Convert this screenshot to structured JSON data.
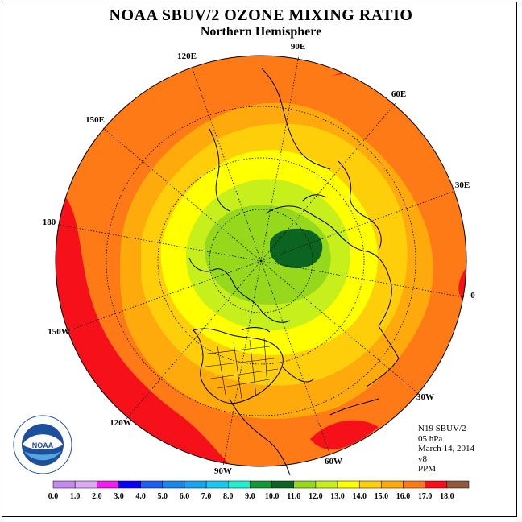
{
  "title": "NOAA SBUV/2 OZONE MIXING RATIO",
  "subtitle": "Northern Hemisphere",
  "longitude_labels": [
    "90E",
    "60E",
    "30E",
    "0",
    "30W",
    "60W",
    "90W",
    "120W",
    "150W",
    "180",
    "150E",
    "120E"
  ],
  "info": {
    "satellite": "N19 SBUV/2",
    "level": "05 hPa",
    "date": "March 14, 2014",
    "version": "v8",
    "units": "PPM"
  },
  "logo": {
    "text": "NOAA",
    "ring_text": "NATIONAL OCEANIC AND ATMOSPHERIC ADMINISTRATION · U.S. DEPARTMENT OF COMMERCE"
  },
  "colorbar": {
    "ticks": [
      "0.0",
      "1.0",
      "2.0",
      "3.0",
      "4.0",
      "5.0",
      "6.0",
      "7.0",
      "8.0",
      "9.0",
      "10.0",
      "11.0",
      "12.0",
      "13.0",
      "14.0",
      "15.0",
      "16.0",
      "17.0",
      "18.0"
    ],
    "colors": [
      "#c389ee",
      "#dba9f5",
      "#f01ef0",
      "#0a00f5",
      "#1e5ff2",
      "#1b87ee",
      "#17a6f2",
      "#19c8f0",
      "#20f0d0",
      "#139639",
      "#0b6420",
      "#96d81c",
      "#c6ef1c",
      "#ffff00",
      "#fece0b",
      "#feaa0c",
      "#fe7a16",
      "#f6101a",
      "#905a3c"
    ]
  },
  "map_colors": {
    "c16_17": "#f6101a",
    "c15_16": "#fe7a16",
    "c14_15": "#feaa0c",
    "c13_14": "#fece0b",
    "c12_13": "#ffff00",
    "c11_12": "#c6ef1c",
    "c10_11": "#96d81c",
    "c9_10": "#0b6420"
  }
}
